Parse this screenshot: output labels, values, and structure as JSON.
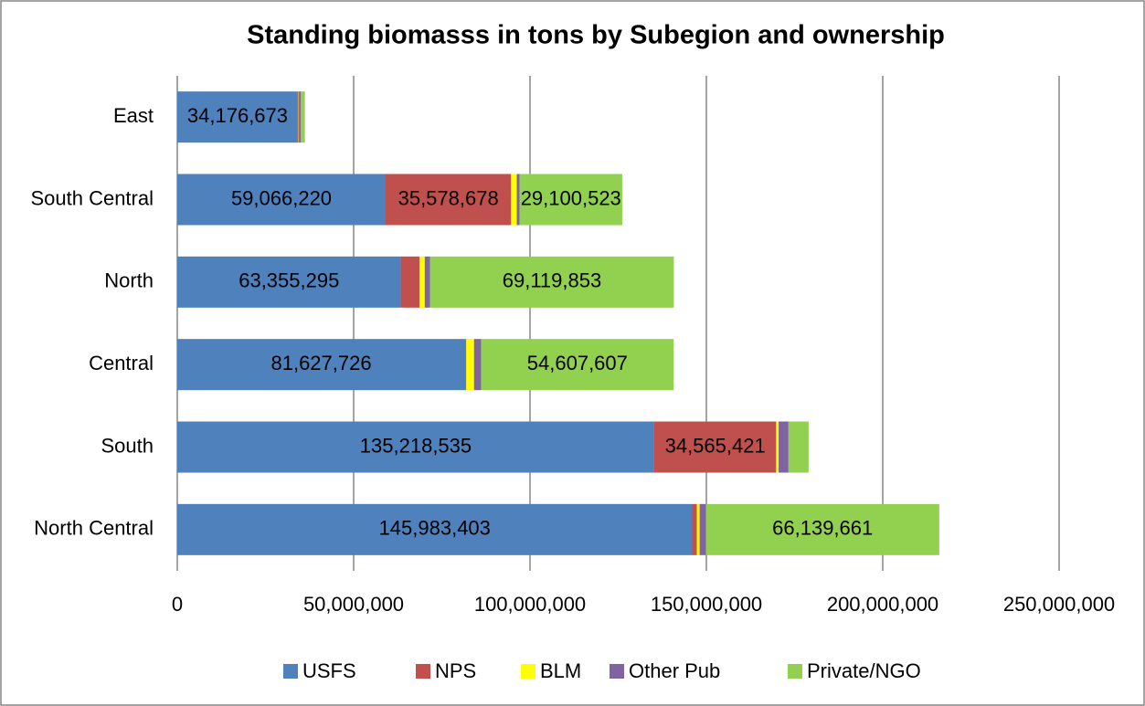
{
  "chart_data": {
    "type": "stacked_bar_horizontal",
    "title": "Standing biomasss in tons by Subegion and ownership",
    "categories": [
      "East",
      "South Central",
      "North",
      "Central",
      "South",
      "North Central"
    ],
    "series": [
      {
        "name": "USFS",
        "color": "#4f81bd",
        "values": [
          34176673,
          59066220,
          63355295,
          81627726,
          135218535,
          145983403
        ],
        "value_labels": [
          "34,176,673",
          "59,066,220",
          "63,355,295",
          "81,627,726",
          "135,218,535",
          "145,983,403"
        ]
      },
      {
        "name": "NPS",
        "color": "#c0504d",
        "values": [
          200000,
          35578678,
          5300000,
          300000,
          34565421,
          1300000
        ],
        "value_labels": [
          null,
          "35,578,678",
          null,
          null,
          "34,565,421",
          null
        ]
      },
      {
        "name": "BLM",
        "color": "#ffff00",
        "values": [
          100000,
          1600000,
          1500000,
          2200000,
          700000,
          800000
        ]
      },
      {
        "name": "Other Pub",
        "color": "#8064a2",
        "values": [
          500000,
          800000,
          1500000,
          2000000,
          2800000,
          1800000
        ]
      },
      {
        "name": "Private/NGO",
        "color": "#92d050",
        "values": [
          1200000,
          29100523,
          69119853,
          54607607,
          5700000,
          66139661
        ],
        "value_labels": [
          null,
          "29,100,523",
          "69,119,853",
          "54,607,607",
          null,
          "66,139,661"
        ]
      }
    ],
    "xlim": [
      0,
      250000000
    ],
    "xticks": [
      0,
      {
        "value": 50000000,
        "label": "50,000,000"
      },
      {
        "value": 100000000,
        "label": "100,000,000"
      },
      {
        "value": 150000000,
        "label": "150,000,000"
      },
      {
        "value": 200000000,
        "label": "200,000,000"
      },
      {
        "value": 250000000,
        "label": "250,000,000"
      }
    ],
    "grid": true,
    "legend": "bottom"
  }
}
